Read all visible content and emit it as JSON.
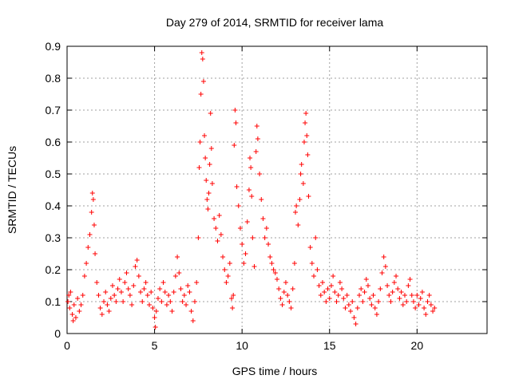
{
  "chart_data": {
    "type": "scatter",
    "title": "Day 279 of 2014, SRMTID for receiver lama",
    "xlabel": "GPS time / hours",
    "ylabel": "SRMTID / TECUs",
    "xlim": [
      0,
      24
    ],
    "ylim": [
      0,
      0.9
    ],
    "x_ticks": [
      "0",
      "5",
      "10",
      "15",
      "20"
    ],
    "x_tick_values": [
      0,
      5,
      10,
      15,
      20
    ],
    "y_ticks": [
      "0",
      "0.1",
      "0.2",
      "0.3",
      "0.4",
      "0.5",
      "0.6",
      "0.7",
      "0.8",
      "0.9"
    ],
    "y_tick_values": [
      0,
      0.1,
      0.2,
      0.3,
      0.4,
      0.5,
      0.6,
      0.7,
      0.8,
      0.9
    ],
    "grid": true,
    "marker": "+",
    "color": "#ff0000",
    "series": [
      {
        "name": "SRMTID",
        "points": [
          [
            0.05,
            0.1
          ],
          [
            0.1,
            0.12
          ],
          [
            0.15,
            0.08
          ],
          [
            0.2,
            0.13
          ],
          [
            0.3,
            0.06
          ],
          [
            0.35,
            0.04
          ],
          [
            0.4,
            0.09
          ],
          [
            0.5,
            0.05
          ],
          [
            0.6,
            0.11
          ],
          [
            0.7,
            0.07
          ],
          [
            0.8,
            0.09
          ],
          [
            0.9,
            0.12
          ],
          [
            1.0,
            0.18
          ],
          [
            1.1,
            0.22
          ],
          [
            1.2,
            0.27
          ],
          [
            1.3,
            0.31
          ],
          [
            1.4,
            0.38
          ],
          [
            1.45,
            0.44
          ],
          [
            1.5,
            0.42
          ],
          [
            1.55,
            0.34
          ],
          [
            1.6,
            0.25
          ],
          [
            1.7,
            0.16
          ],
          [
            1.8,
            0.12
          ],
          [
            1.9,
            0.08
          ],
          [
            2.0,
            0.06
          ],
          [
            2.1,
            0.1
          ],
          [
            2.2,
            0.13
          ],
          [
            2.3,
            0.09
          ],
          [
            2.4,
            0.07
          ],
          [
            2.5,
            0.11
          ],
          [
            2.6,
            0.15
          ],
          [
            2.7,
            0.12
          ],
          [
            2.8,
            0.1
          ],
          [
            2.9,
            0.14
          ],
          [
            3.0,
            0.17
          ],
          [
            3.1,
            0.13
          ],
          [
            3.2,
            0.1
          ],
          [
            3.3,
            0.16
          ],
          [
            3.4,
            0.19
          ],
          [
            3.5,
            0.14
          ],
          [
            3.6,
            0.12
          ],
          [
            3.7,
            0.09
          ],
          [
            3.8,
            0.15
          ],
          [
            3.9,
            0.21
          ],
          [
            4.0,
            0.23
          ],
          [
            4.1,
            0.18
          ],
          [
            4.2,
            0.13
          ],
          [
            4.3,
            0.1
          ],
          [
            4.4,
            0.14
          ],
          [
            4.5,
            0.16
          ],
          [
            4.6,
            0.12
          ],
          [
            4.7,
            0.09
          ],
          [
            4.8,
            0.13
          ],
          [
            4.9,
            0.08
          ],
          [
            5.0,
            0.05
          ],
          [
            5.05,
            0.02
          ],
          [
            5.1,
            0.07
          ],
          [
            5.2,
            0.11
          ],
          [
            5.3,
            0.14
          ],
          [
            5.4,
            0.1
          ],
          [
            5.5,
            0.16
          ],
          [
            5.6,
            0.13
          ],
          [
            5.7,
            0.09
          ],
          [
            5.8,
            0.12
          ],
          [
            5.9,
            0.1
          ],
          [
            6.0,
            0.07
          ],
          [
            6.1,
            0.13
          ],
          [
            6.2,
            0.18
          ],
          [
            6.3,
            0.24
          ],
          [
            6.4,
            0.19
          ],
          [
            6.5,
            0.14
          ],
          [
            6.6,
            0.1
          ],
          [
            6.7,
            0.12
          ],
          [
            6.8,
            0.09
          ],
          [
            6.9,
            0.15
          ],
          [
            7.0,
            0.13
          ],
          [
            7.1,
            0.07
          ],
          [
            7.2,
            0.04
          ],
          [
            7.3,
            0.1
          ],
          [
            7.4,
            0.16
          ],
          [
            7.5,
            0.3
          ],
          [
            7.55,
            0.52
          ],
          [
            7.6,
            0.6
          ],
          [
            7.65,
            0.75
          ],
          [
            7.7,
            0.88
          ],
          [
            7.75,
            0.86
          ],
          [
            7.8,
            0.79
          ],
          [
            7.85,
            0.62
          ],
          [
            7.9,
            0.55
          ],
          [
            7.95,
            0.48
          ],
          [
            8.0,
            0.42
          ],
          [
            8.05,
            0.39
          ],
          [
            8.1,
            0.44
          ],
          [
            8.15,
            0.53
          ],
          [
            8.2,
            0.69
          ],
          [
            8.25,
            0.58
          ],
          [
            8.3,
            0.47
          ],
          [
            8.4,
            0.36
          ],
          [
            8.5,
            0.33
          ],
          [
            8.6,
            0.29
          ],
          [
            8.7,
            0.37
          ],
          [
            8.8,
            0.31
          ],
          [
            8.9,
            0.24
          ],
          [
            9.0,
            0.2
          ],
          [
            9.1,
            0.16
          ],
          [
            9.2,
            0.18
          ],
          [
            9.3,
            0.22
          ],
          [
            9.4,
            0.11
          ],
          [
            9.45,
            0.08
          ],
          [
            9.5,
            0.12
          ],
          [
            9.55,
            0.59
          ],
          [
            9.6,
            0.7
          ],
          [
            9.65,
            0.66
          ],
          [
            9.7,
            0.46
          ],
          [
            9.8,
            0.4
          ],
          [
            9.9,
            0.33
          ],
          [
            10.0,
            0.28
          ],
          [
            10.1,
            0.22
          ],
          [
            10.2,
            0.25
          ],
          [
            10.3,
            0.35
          ],
          [
            10.4,
            0.45
          ],
          [
            10.45,
            0.55
          ],
          [
            10.5,
            0.52
          ],
          [
            10.55,
            0.43
          ],
          [
            10.6,
            0.3
          ],
          [
            10.7,
            0.21
          ],
          [
            10.8,
            0.57
          ],
          [
            10.85,
            0.65
          ],
          [
            10.9,
            0.61
          ],
          [
            11.0,
            0.5
          ],
          [
            11.1,
            0.42
          ],
          [
            11.2,
            0.36
          ],
          [
            11.3,
            0.3
          ],
          [
            11.4,
            0.33
          ],
          [
            11.5,
            0.28
          ],
          [
            11.6,
            0.24
          ],
          [
            11.7,
            0.22
          ],
          [
            11.8,
            0.2
          ],
          [
            11.9,
            0.19
          ],
          [
            12.0,
            0.17
          ],
          [
            12.1,
            0.14
          ],
          [
            12.2,
            0.11
          ],
          [
            12.3,
            0.09
          ],
          [
            12.4,
            0.13
          ],
          [
            12.5,
            0.16
          ],
          [
            12.6,
            0.12
          ],
          [
            12.7,
            0.1
          ],
          [
            12.8,
            0.08
          ],
          [
            12.9,
            0.14
          ],
          [
            13.0,
            0.22
          ],
          [
            13.05,
            0.38
          ],
          [
            13.1,
            0.4
          ],
          [
            13.2,
            0.34
          ],
          [
            13.3,
            0.42
          ],
          [
            13.35,
            0.5
          ],
          [
            13.4,
            0.53
          ],
          [
            13.5,
            0.47
          ],
          [
            13.55,
            0.6
          ],
          [
            13.6,
            0.66
          ],
          [
            13.65,
            0.69
          ],
          [
            13.7,
            0.62
          ],
          [
            13.75,
            0.56
          ],
          [
            13.8,
            0.43
          ],
          [
            13.9,
            0.27
          ],
          [
            14.0,
            0.22
          ],
          [
            14.1,
            0.18
          ],
          [
            14.2,
            0.3
          ],
          [
            14.3,
            0.2
          ],
          [
            14.4,
            0.15
          ],
          [
            14.5,
            0.12
          ],
          [
            14.6,
            0.16
          ],
          [
            14.7,
            0.13
          ],
          [
            14.8,
            0.1
          ],
          [
            14.9,
            0.14
          ],
          [
            15.0,
            0.11
          ],
          [
            15.1,
            0.15
          ],
          [
            15.2,
            0.18
          ],
          [
            15.3,
            0.13
          ],
          [
            15.4,
            0.1
          ],
          [
            15.5,
            0.12
          ],
          [
            15.6,
            0.16
          ],
          [
            15.7,
            0.14
          ],
          [
            15.8,
            0.11
          ],
          [
            15.9,
            0.08
          ],
          [
            16.0,
            0.12
          ],
          [
            16.1,
            0.09
          ],
          [
            16.2,
            0.07
          ],
          [
            16.3,
            0.1
          ],
          [
            16.4,
            0.05
          ],
          [
            16.5,
            0.03
          ],
          [
            16.6,
            0.08
          ],
          [
            16.7,
            0.12
          ],
          [
            16.8,
            0.14
          ],
          [
            16.9,
            0.1
          ],
          [
            17.0,
            0.13
          ],
          [
            17.1,
            0.17
          ],
          [
            17.2,
            0.15
          ],
          [
            17.3,
            0.11
          ],
          [
            17.4,
            0.09
          ],
          [
            17.5,
            0.12
          ],
          [
            17.6,
            0.08
          ],
          [
            17.7,
            0.06
          ],
          [
            17.8,
            0.1
          ],
          [
            17.9,
            0.14
          ],
          [
            18.0,
            0.19
          ],
          [
            18.1,
            0.24
          ],
          [
            18.2,
            0.21
          ],
          [
            18.3,
            0.15
          ],
          [
            18.4,
            0.12
          ],
          [
            18.5,
            0.1
          ],
          [
            18.6,
            0.13
          ],
          [
            18.7,
            0.16
          ],
          [
            18.8,
            0.18
          ],
          [
            18.9,
            0.14
          ],
          [
            19.0,
            0.11
          ],
          [
            19.1,
            0.13
          ],
          [
            19.2,
            0.09
          ],
          [
            19.3,
            0.12
          ],
          [
            19.4,
            0.1
          ],
          [
            19.5,
            0.15
          ],
          [
            19.6,
            0.17
          ],
          [
            19.7,
            0.12
          ],
          [
            19.8,
            0.1
          ],
          [
            19.9,
            0.08
          ],
          [
            20.0,
            0.12
          ],
          [
            20.1,
            0.09
          ],
          [
            20.2,
            0.11
          ],
          [
            20.3,
            0.13
          ],
          [
            20.4,
            0.08
          ],
          [
            20.5,
            0.06
          ],
          [
            20.6,
            0.1
          ],
          [
            20.7,
            0.12
          ],
          [
            20.8,
            0.09
          ],
          [
            20.9,
            0.07
          ],
          [
            21.0,
            0.08
          ]
        ]
      }
    ]
  }
}
